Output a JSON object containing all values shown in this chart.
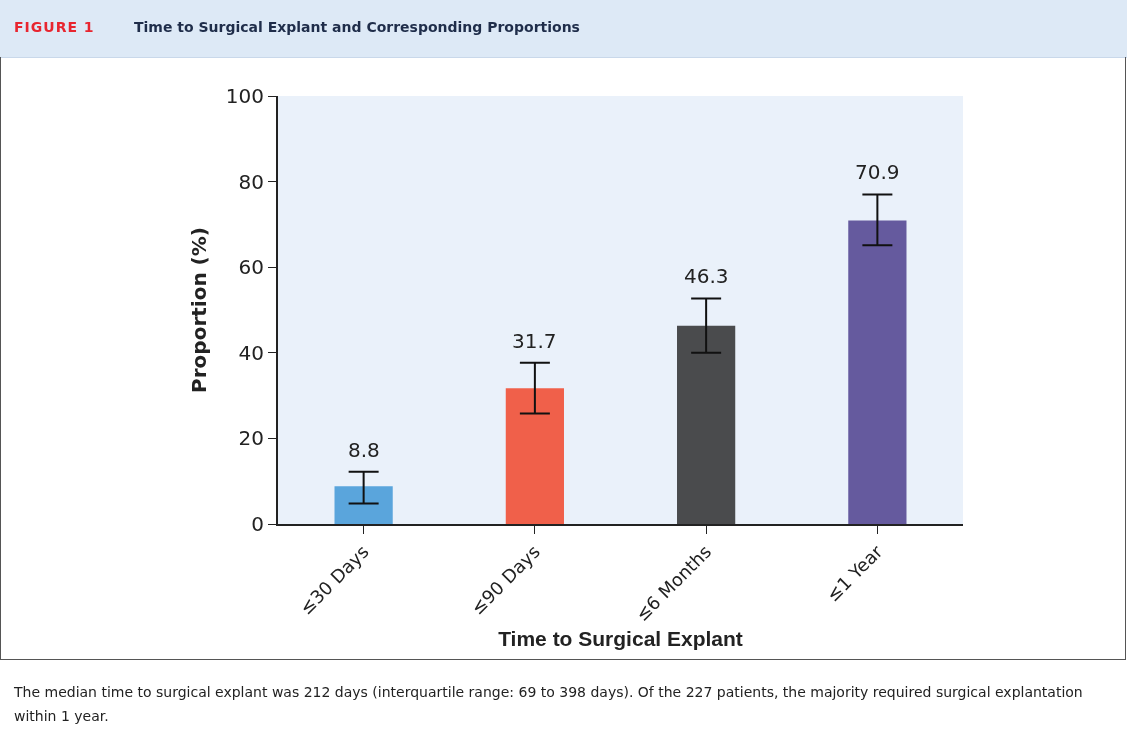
{
  "chart_data": {
    "type": "bar",
    "title": "Time to Surgical Explant and Corresponding Proportions",
    "xlabel": "Time to Surgical Explant",
    "ylabel": "Proportion (%)",
    "annotations": [
      "FIGURE 1",
      "The median time to surgical explant was 212 days (interquartile range: 69 to 398 days). Of the 227 patients, the majority required surgical explantation within 1 year."
    ],
    "categories": [
      "≤30 Days",
      "≤90 Days",
      "≤6 Months",
      "≤1 Year"
    ],
    "values": [
      8.8,
      31.7,
      46.3,
      70.9
    ],
    "colors": [
      "#5aa5dc",
      "#f0604a",
      "#4a4b4d",
      "#655a9e"
    ],
    "errors": [
      [
        4.8,
        12.2
      ],
      [
        25.8,
        37.7
      ],
      [
        40,
        52.7
      ],
      [
        65.1,
        77
      ]
    ],
    "ylim": [
      0,
      100
    ],
    "yticks": [
      0,
      20,
      40,
      60,
      80,
      100
    ],
    "grid": false,
    "legend": false,
    "data_labels": true
  }
}
